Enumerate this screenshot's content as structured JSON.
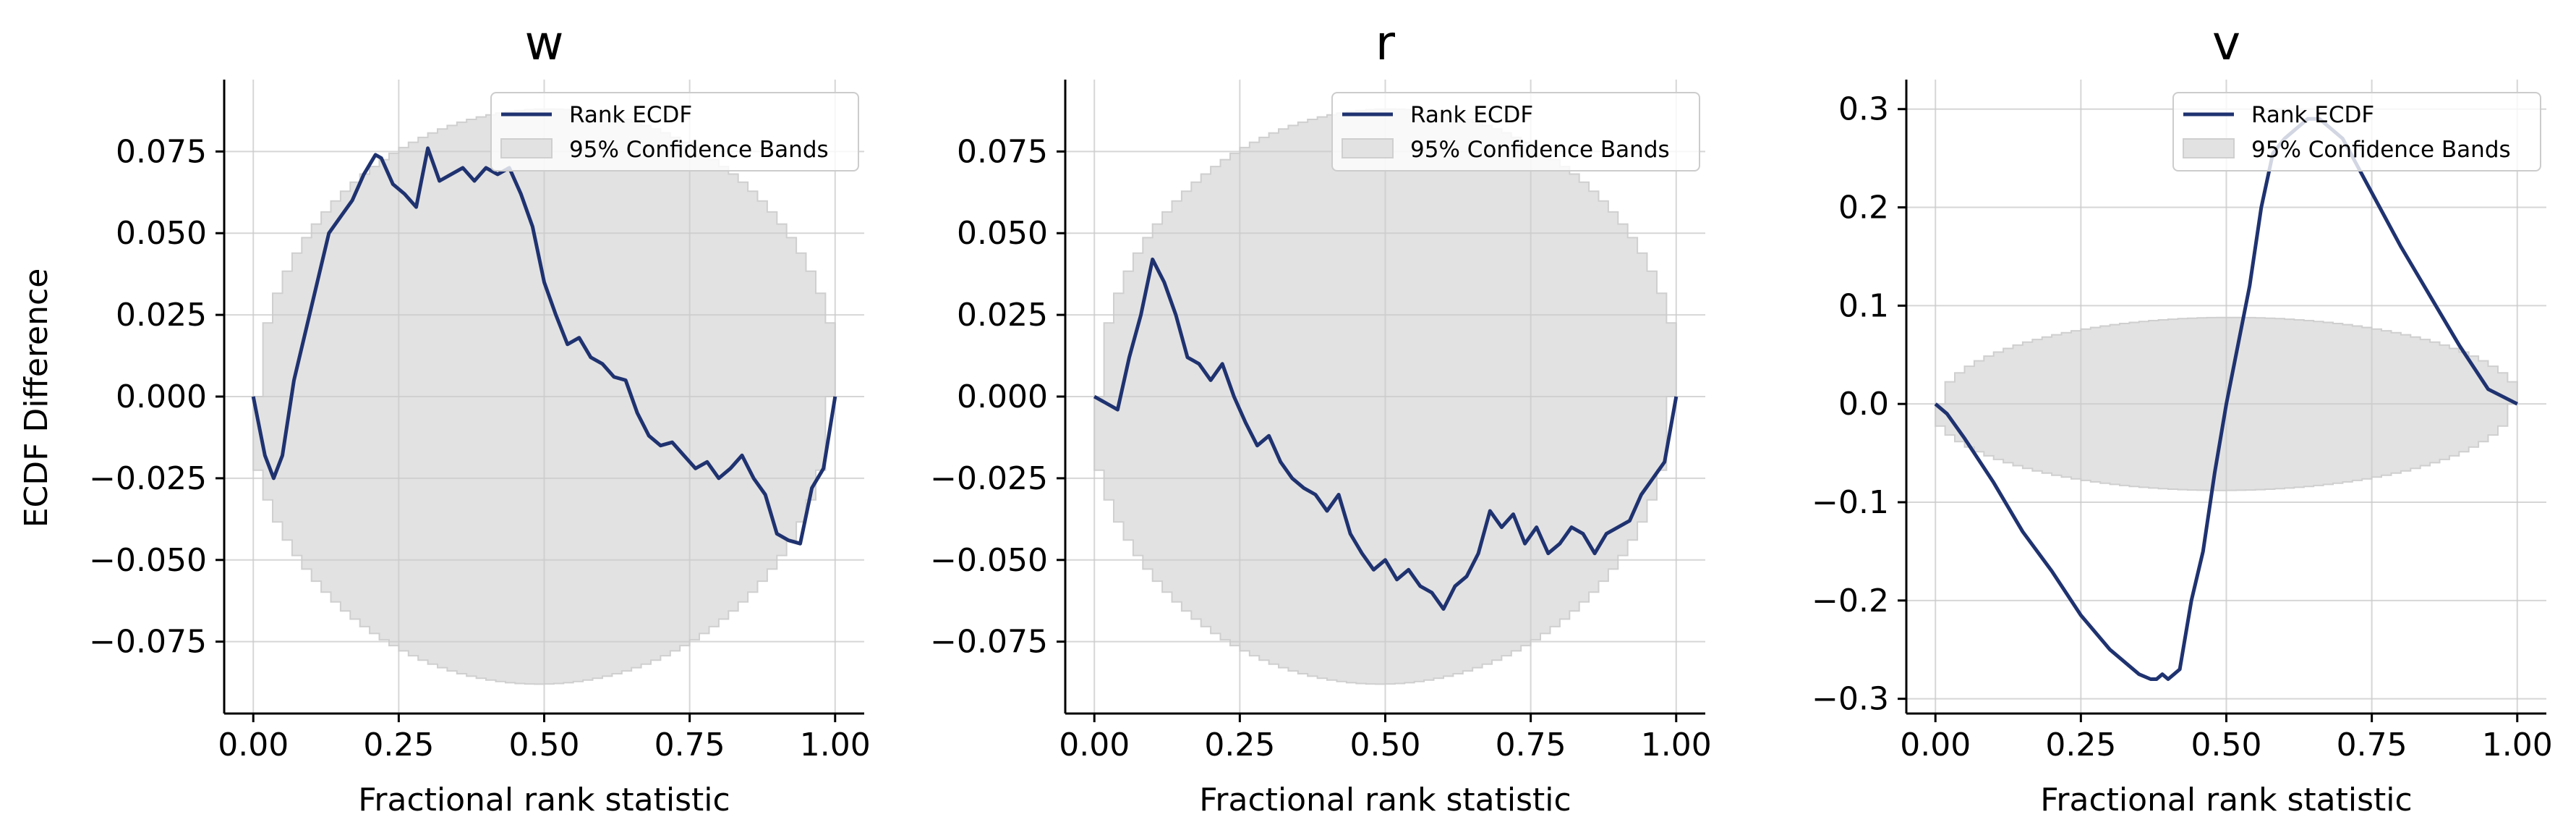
{
  "colors": {
    "line": "#1f3270",
    "band": "#e2e2e2",
    "band_edge": "#cfcfcf",
    "grid": "#cccccc",
    "axis": "#000000"
  },
  "figure": {
    "ylabel": "ECDF Difference"
  },
  "chart_data": [
    {
      "type": "line",
      "title": "w",
      "xlabel": "Fractional rank statistic",
      "ylabel": "ECDF Difference",
      "xlim": [
        -0.05,
        1.05
      ],
      "ylim": [
        -0.097,
        0.097
      ],
      "xticks": [
        0.0,
        0.25,
        0.5,
        0.75,
        1.0
      ],
      "xtick_labels": [
        "0.00",
        "0.25",
        "0.50",
        "0.75",
        "1.00"
      ],
      "yticks": [
        -0.075,
        -0.05,
        -0.025,
        0.0,
        0.025,
        0.05,
        0.075
      ],
      "ytick_labels": [
        "−0.075",
        "−0.050",
        "−0.025",
        "0.000",
        "0.025",
        "0.050",
        "0.075"
      ],
      "grid": true,
      "legend": {
        "placement": "top-right",
        "entries": [
          "Rank ECDF",
          "95% Confidence Bands"
        ]
      },
      "band_halfwidth_peak": 0.088,
      "series": [
        {
          "name": "Rank ECDF",
          "x": [
            0.0,
            0.02,
            0.035,
            0.05,
            0.07,
            0.09,
            0.11,
            0.13,
            0.15,
            0.17,
            0.19,
            0.21,
            0.22,
            0.24,
            0.26,
            0.28,
            0.3,
            0.32,
            0.34,
            0.36,
            0.38,
            0.4,
            0.42,
            0.44,
            0.46,
            0.48,
            0.5,
            0.52,
            0.54,
            0.56,
            0.58,
            0.6,
            0.62,
            0.64,
            0.66,
            0.68,
            0.7,
            0.72,
            0.74,
            0.76,
            0.78,
            0.8,
            0.82,
            0.84,
            0.86,
            0.88,
            0.9,
            0.92,
            0.94,
            0.96,
            0.98,
            1.0
          ],
          "y": [
            0.0,
            -0.018,
            -0.025,
            -0.018,
            0.005,
            0.02,
            0.035,
            0.05,
            0.055,
            0.06,
            0.068,
            0.074,
            0.073,
            0.065,
            0.062,
            0.058,
            0.076,
            0.066,
            0.068,
            0.07,
            0.066,
            0.07,
            0.068,
            0.07,
            0.062,
            0.052,
            0.035,
            0.025,
            0.016,
            0.018,
            0.012,
            0.01,
            0.006,
            0.005,
            -0.005,
            -0.012,
            -0.015,
            -0.014,
            -0.018,
            -0.022,
            -0.02,
            -0.025,
            -0.022,
            -0.018,
            -0.025,
            -0.03,
            -0.042,
            -0.044,
            -0.045,
            -0.028,
            -0.022,
            0.0
          ]
        }
      ]
    },
    {
      "type": "line",
      "title": "r",
      "xlabel": "Fractional rank statistic",
      "ylabel": "",
      "xlim": [
        -0.05,
        1.05
      ],
      "ylim": [
        -0.097,
        0.097
      ],
      "xticks": [
        0.0,
        0.25,
        0.5,
        0.75,
        1.0
      ],
      "xtick_labels": [
        "0.00",
        "0.25",
        "0.50",
        "0.75",
        "1.00"
      ],
      "yticks": [
        -0.075,
        -0.05,
        -0.025,
        0.0,
        0.025,
        0.05,
        0.075
      ],
      "ytick_labels": [
        "−0.075",
        "−0.050",
        "−0.025",
        "0.000",
        "0.025",
        "0.050",
        "0.075"
      ],
      "grid": true,
      "legend": {
        "placement": "top-right",
        "entries": [
          "Rank ECDF",
          "95% Confidence Bands"
        ]
      },
      "band_halfwidth_peak": 0.088,
      "series": [
        {
          "name": "Rank ECDF",
          "x": [
            0.0,
            0.02,
            0.04,
            0.06,
            0.08,
            0.1,
            0.12,
            0.14,
            0.16,
            0.18,
            0.2,
            0.22,
            0.24,
            0.26,
            0.28,
            0.3,
            0.32,
            0.34,
            0.36,
            0.38,
            0.4,
            0.42,
            0.44,
            0.46,
            0.48,
            0.5,
            0.52,
            0.54,
            0.56,
            0.58,
            0.6,
            0.62,
            0.64,
            0.66,
            0.68,
            0.7,
            0.72,
            0.74,
            0.76,
            0.78,
            0.8,
            0.82,
            0.84,
            0.86,
            0.88,
            0.9,
            0.92,
            0.94,
            0.96,
            0.98,
            1.0
          ],
          "y": [
            0.0,
            -0.002,
            -0.004,
            0.012,
            0.025,
            0.042,
            0.035,
            0.025,
            0.012,
            0.01,
            0.005,
            0.01,
            0.0,
            -0.008,
            -0.015,
            -0.012,
            -0.02,
            -0.025,
            -0.028,
            -0.03,
            -0.035,
            -0.03,
            -0.042,
            -0.048,
            -0.053,
            -0.05,
            -0.056,
            -0.053,
            -0.058,
            -0.06,
            -0.065,
            -0.058,
            -0.055,
            -0.048,
            -0.035,
            -0.04,
            -0.036,
            -0.045,
            -0.04,
            -0.048,
            -0.045,
            -0.04,
            -0.042,
            -0.048,
            -0.042,
            -0.04,
            -0.038,
            -0.03,
            -0.025,
            -0.02,
            0.0
          ]
        }
      ]
    },
    {
      "type": "line",
      "title": "v",
      "xlabel": "Fractional rank statistic",
      "ylabel": "",
      "xlim": [
        -0.05,
        1.05
      ],
      "ylim": [
        -0.315,
        0.33
      ],
      "xticks": [
        0.0,
        0.25,
        0.5,
        0.75,
        1.0
      ],
      "xtick_labels": [
        "0.00",
        "0.25",
        "0.50",
        "0.75",
        "1.00"
      ],
      "yticks": [
        -0.3,
        -0.2,
        -0.1,
        0.0,
        0.1,
        0.2,
        0.3
      ],
      "ytick_labels": [
        "−0.3",
        "−0.2",
        "−0.1",
        "0.0",
        "0.1",
        "0.2",
        "0.3"
      ],
      "grid": true,
      "legend": {
        "placement": "top-right",
        "entries": [
          "Rank ECDF",
          "95% Confidence Bands"
        ]
      },
      "band_halfwidth_peak": 0.088,
      "series": [
        {
          "name": "Rank ECDF",
          "x": [
            0.0,
            0.02,
            0.05,
            0.1,
            0.15,
            0.2,
            0.25,
            0.3,
            0.35,
            0.37,
            0.38,
            0.39,
            0.4,
            0.41,
            0.42,
            0.44,
            0.46,
            0.48,
            0.5,
            0.52,
            0.54,
            0.56,
            0.58,
            0.6,
            0.62,
            0.64,
            0.66,
            0.68,
            0.7,
            0.75,
            0.8,
            0.85,
            0.9,
            0.95,
            1.0
          ],
          "y": [
            0.0,
            -0.01,
            -0.035,
            -0.08,
            -0.13,
            -0.17,
            -0.215,
            -0.25,
            -0.275,
            -0.28,
            -0.28,
            -0.275,
            -0.28,
            -0.275,
            -0.27,
            -0.2,
            -0.15,
            -0.07,
            0.0,
            0.06,
            0.12,
            0.2,
            0.255,
            0.27,
            0.28,
            0.29,
            0.29,
            0.28,
            0.27,
            0.215,
            0.16,
            0.11,
            0.06,
            0.015,
            0.0
          ]
        }
      ]
    }
  ]
}
